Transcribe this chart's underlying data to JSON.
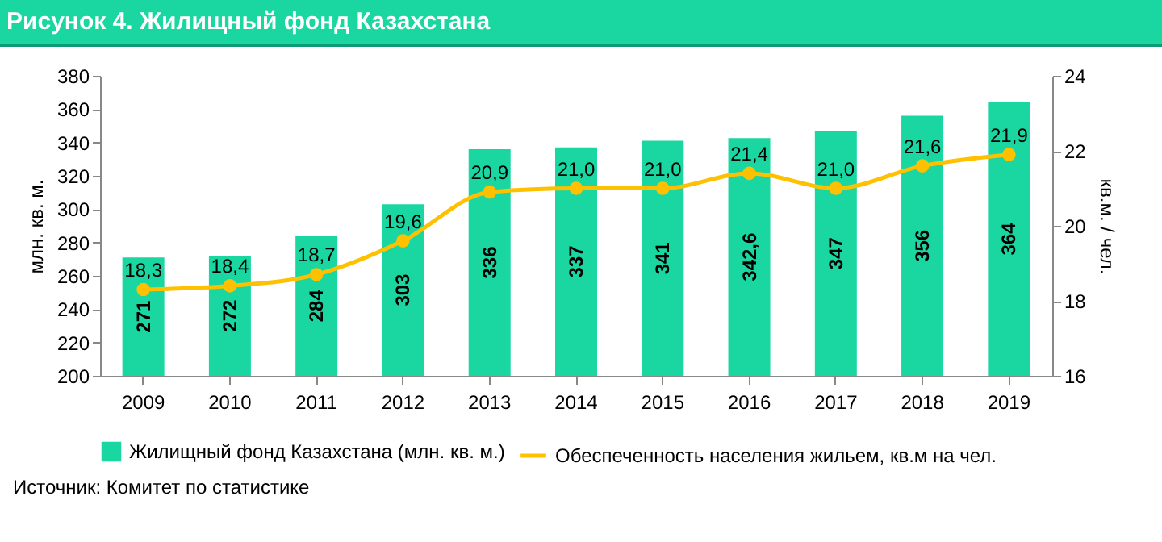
{
  "chart_data": {
    "type": "bar",
    "title": "Рисунок 4. Жилищный фонд Казахстана",
    "categories": [
      "2009",
      "2010",
      "2011",
      "2012",
      "2013",
      "2014",
      "2015",
      "2016",
      "2017",
      "2018",
      "2019"
    ],
    "series": [
      {
        "name": "Жилищный фонд Казахстана (млн. кв. м.)",
        "color": "#1ad6a0",
        "type": "bar",
        "values": [
          271,
          272,
          284,
          303,
          336,
          337,
          341,
          342.6,
          347,
          356,
          364
        ],
        "value_labels": [
          "271",
          "272",
          "284",
          "303",
          "336",
          "337",
          "341",
          "342,6",
          "347",
          "356",
          "364"
        ]
      },
      {
        "name": "Обеспеченность населения жильем, кв.м на чел.",
        "color": "#ffc000",
        "type": "line",
        "axis": "y2",
        "values": [
          18.3,
          18.4,
          18.7,
          19.6,
          20.9,
          21.0,
          21.0,
          21.4,
          21.0,
          21.6,
          21.9
        ],
        "value_labels": [
          "18,3",
          "18,4",
          "18,7",
          "19,6",
          "20,9",
          "21,0",
          "21,0",
          "21,4",
          "21,0",
          "21,6",
          "21,9"
        ]
      }
    ],
    "ylabel": "млн. кв. м.",
    "y2label": "кв.м. / чел.",
    "ylim": [
      200,
      380
    ],
    "yticks": [
      200,
      220,
      240,
      260,
      280,
      300,
      320,
      340,
      360,
      380
    ],
    "y2lim": [
      16,
      24
    ],
    "y2ticks": [
      16,
      18,
      20,
      22,
      24
    ],
    "grid": false,
    "legend": "bottom",
    "marker": "circle",
    "annotations": [
      "Источник: Комитет по статистике"
    ]
  }
}
